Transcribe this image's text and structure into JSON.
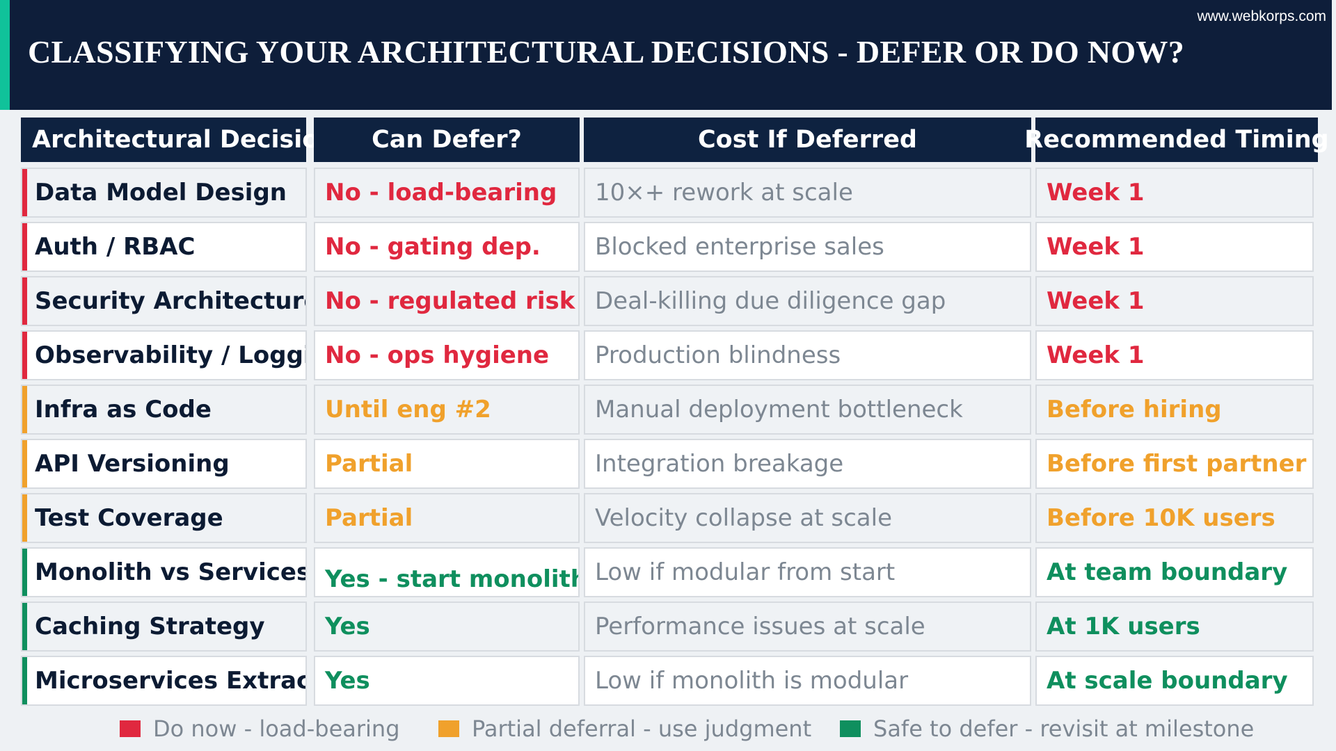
{
  "header": {
    "title": "CLASSIFYING YOUR ARCHITECTURAL DECISIONS - DEFER OR DO NOW?",
    "site": "www.webkorps.com"
  },
  "colors": {
    "red": "#e0283f",
    "orange": "#f0a12c",
    "green": "#0f8f5e",
    "header_bg": "#0e1e3a",
    "accent": "#10c29a"
  },
  "table": {
    "columns": [
      "Architectural Decision",
      "Can Defer?",
      "Cost If Deferred",
      "Recommended Timing"
    ],
    "rows": [
      {
        "decision": "Data Model Design",
        "defer": "No - load-bearing",
        "cost": "10×+ rework at scale",
        "timing": "Week 1",
        "level": "red"
      },
      {
        "decision": "Auth / RBAC",
        "defer": "No - gating dep.",
        "cost": "Blocked enterprise sales",
        "timing": "Week 1",
        "level": "red"
      },
      {
        "decision": "Security Architecture",
        "defer": "No - regulated risk",
        "cost": "Deal-killing due diligence gap",
        "timing": "Week 1",
        "level": "red"
      },
      {
        "decision": "Observability / Logging",
        "defer": "No - ops hygiene",
        "cost": "Production blindness",
        "timing": "Week 1",
        "level": "red"
      },
      {
        "decision": "Infra as Code",
        "defer": "Until eng #2",
        "cost": "Manual deployment bottleneck",
        "timing": "Before hiring",
        "level": "orange"
      },
      {
        "decision": "API Versioning",
        "defer": "Partial",
        "cost": "Integration breakage",
        "timing": "Before first partner",
        "level": "orange"
      },
      {
        "decision": "Test Coverage",
        "defer": "Partial",
        "cost": "Velocity collapse at scale",
        "timing": "Before 10K users",
        "level": "orange"
      },
      {
        "decision": "Monolith vs Services",
        "defer": "Yes - start monolith",
        "cost": "Low if modular from start",
        "timing": "At team boundary",
        "level": "green"
      },
      {
        "decision": "Caching Strategy",
        "defer": "Yes",
        "cost": "Performance issues at scale",
        "timing": "At 1K users",
        "level": "green"
      },
      {
        "decision": "Microservices Extract.",
        "defer": "Yes",
        "cost": "Low if monolith is modular",
        "timing": "At scale boundary",
        "level": "green"
      }
    ]
  },
  "legend": [
    {
      "label": "Do now - load-bearing",
      "level": "red"
    },
    {
      "label": "Partial deferral - use judgment",
      "level": "orange"
    },
    {
      "label": "Safe to defer - revisit at milestone",
      "level": "green"
    }
  ]
}
